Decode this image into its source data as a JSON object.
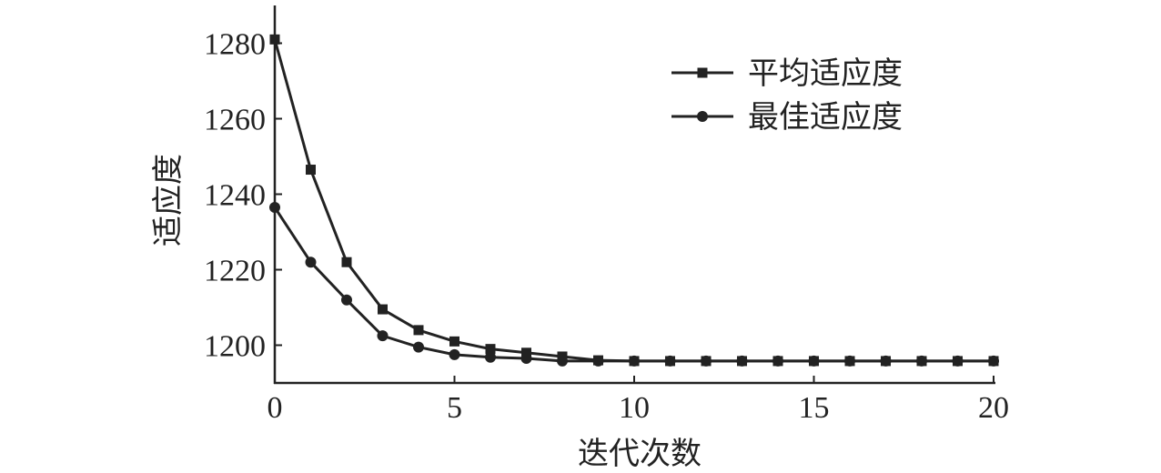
{
  "chart_data": {
    "type": "line",
    "title": "",
    "xlabel": "迭代次数",
    "ylabel": "适应度",
    "xlim": [
      0,
      20
    ],
    "ylim": [
      1190,
      1290
    ],
    "xticks": [
      0,
      5,
      10,
      15,
      20
    ],
    "yticks": [
      1200,
      1220,
      1240,
      1260,
      1280
    ],
    "grid": false,
    "legend_position": "top-right",
    "x": [
      0,
      1,
      2,
      3,
      4,
      5,
      6,
      7,
      8,
      9,
      10,
      11,
      12,
      13,
      14,
      15,
      16,
      17,
      18,
      19,
      20
    ],
    "series": [
      {
        "name": "平均适应度",
        "marker": "square",
        "color": "#222222",
        "values": [
          1281,
          1246.5,
          1222,
          1209.5,
          1204,
          1201,
          1199,
          1198,
          1197,
          1196,
          1195.8,
          1195.8,
          1195.8,
          1195.8,
          1195.8,
          1195.8,
          1195.8,
          1195.8,
          1195.8,
          1195.8,
          1195.8
        ]
      },
      {
        "name": "最佳适应度",
        "marker": "circle",
        "color": "#222222",
        "values": [
          1236.5,
          1222,
          1212,
          1202.5,
          1199.5,
          1197.5,
          1196.8,
          1196.5,
          1195.8,
          1195.8,
          1195.8,
          1195.8,
          1195.8,
          1195.8,
          1195.8,
          1195.8,
          1195.8,
          1195.8,
          1195.8,
          1195.8,
          1195.8
        ]
      }
    ]
  }
}
